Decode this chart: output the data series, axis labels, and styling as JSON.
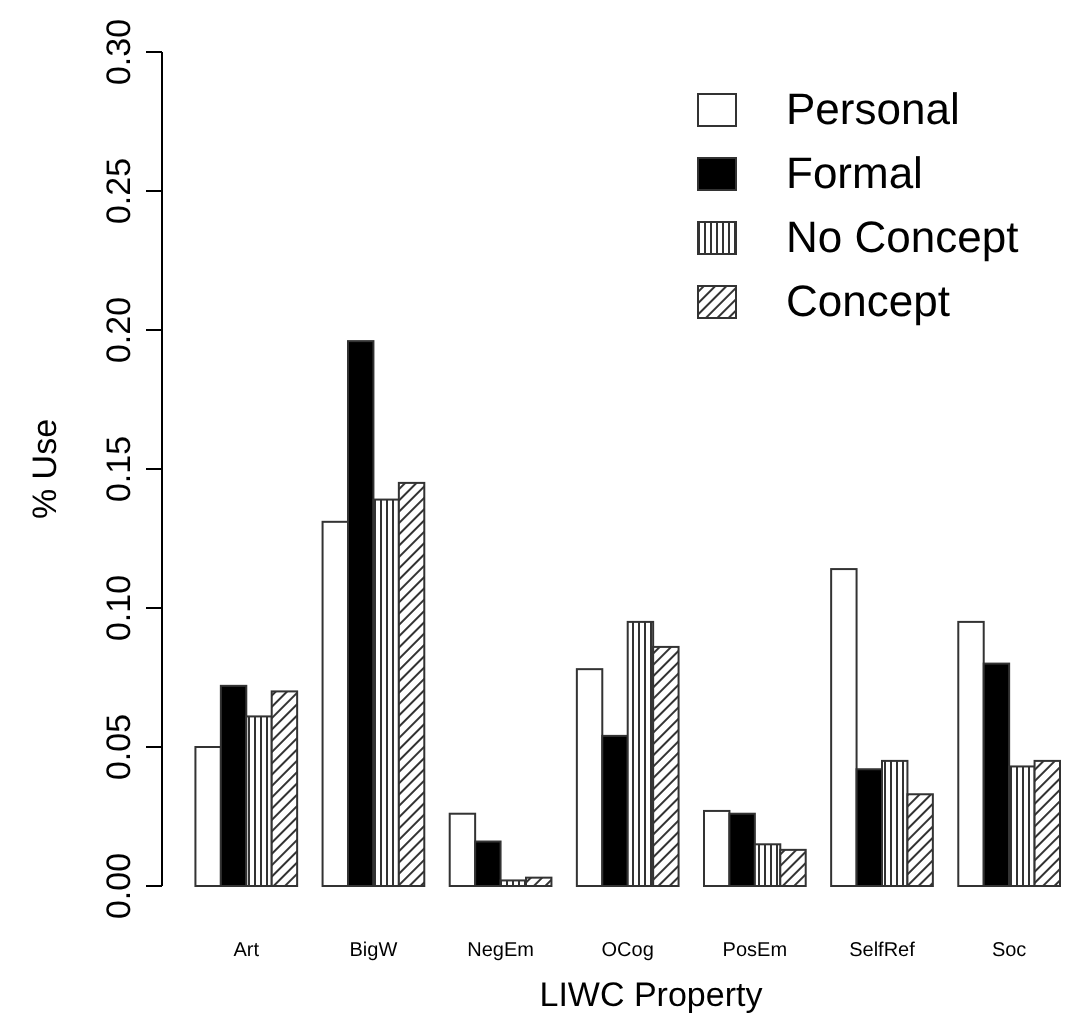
{
  "chart_data": {
    "type": "bar",
    "xlabel": "LIWC Property",
    "ylabel": "% Use",
    "categories": [
      "Art",
      "BigW",
      "NegEm",
      "OCog",
      "PosEm",
      "SelfRef",
      "Soc"
    ],
    "series": [
      {
        "name": "Personal",
        "color": "#ffffff",
        "values": [
          0.05,
          0.131,
          0.026,
          0.078,
          0.027,
          0.114,
          0.095
        ]
      },
      {
        "name": "Formal",
        "color": "#000000",
        "values": [
          0.072,
          0.196,
          0.016,
          0.054,
          0.026,
          0.042,
          0.08
        ]
      },
      {
        "name": "No Concept",
        "color": "#333333",
        "values": [
          0.061,
          0.139,
          0.002,
          0.095,
          0.015,
          0.045,
          0.043
        ]
      },
      {
        "name": "Concept",
        "color": "#333333",
        "values": [
          0.07,
          0.145,
          0.003,
          0.086,
          0.013,
          0.033,
          0.045
        ]
      }
    ],
    "ylim": [
      0,
      0.3
    ],
    "yticks": [
      {
        "value": 0,
        "label": "0.00"
      },
      0.05,
      {
        "value": 0.1,
        "label": "0.10"
      },
      0.15,
      {
        "value": 0.2,
        "label": "0.20"
      },
      0.25,
      {
        "value": 0.3,
        "label": "0.30"
      }
    ],
    "grid": false,
    "legend": "top right"
  }
}
